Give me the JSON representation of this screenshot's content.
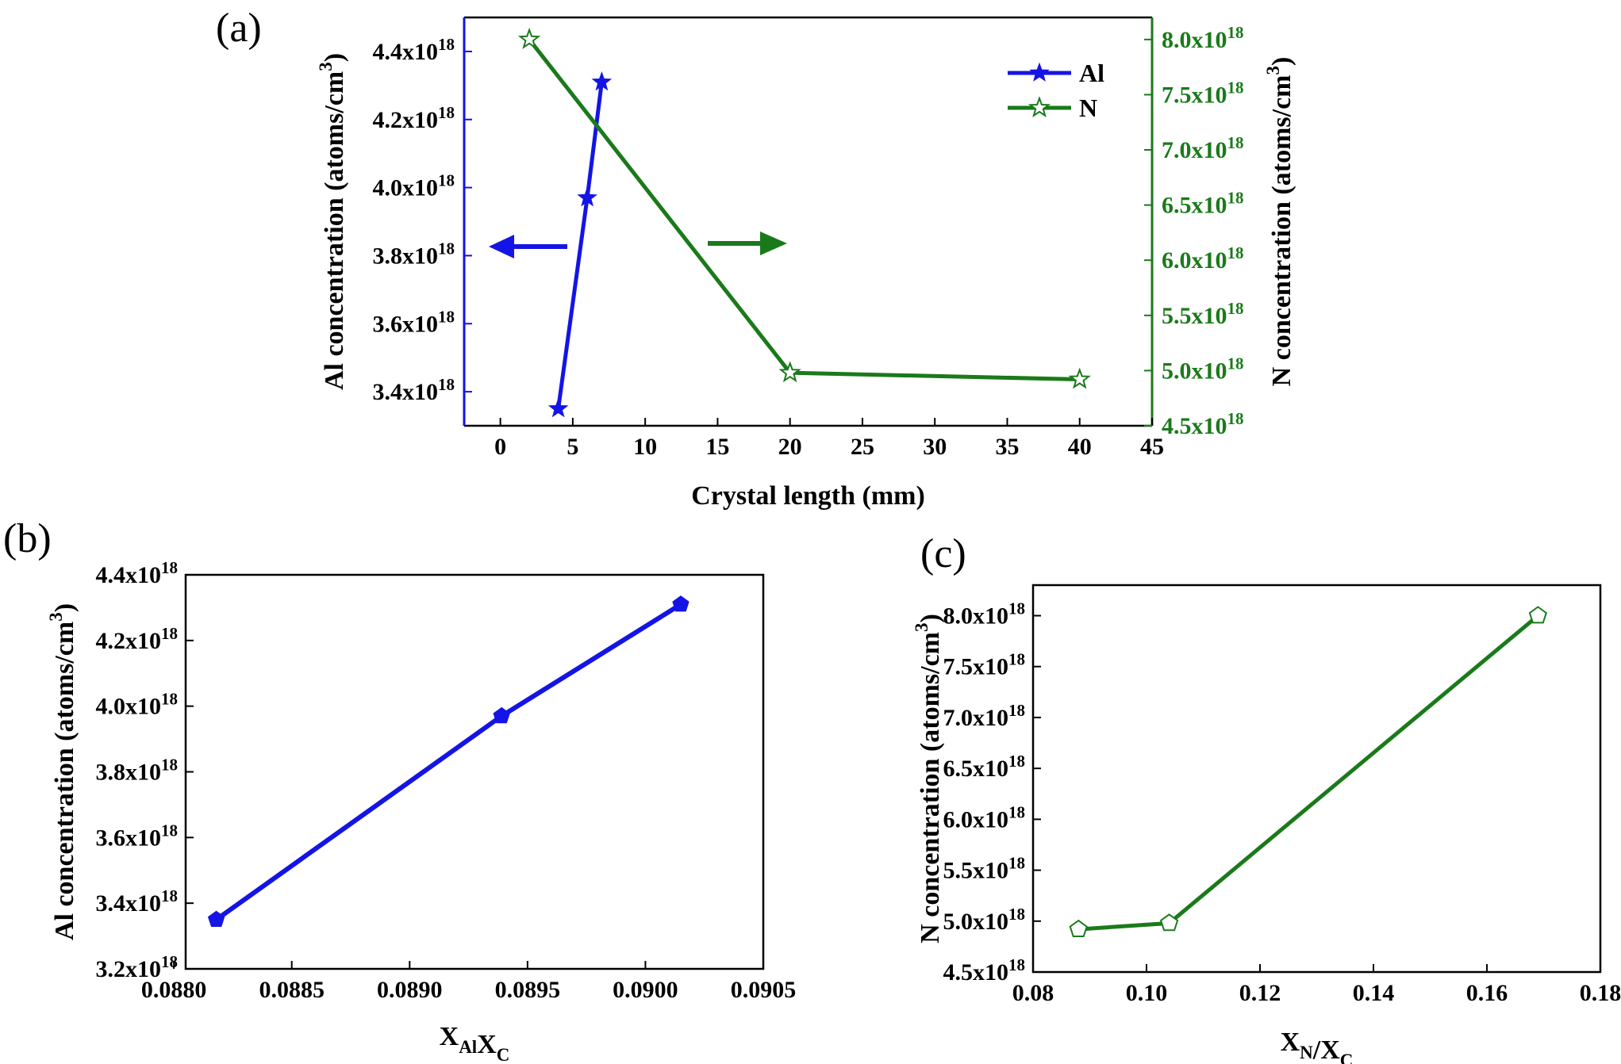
{
  "colors": {
    "al": "#1414e6",
    "n": "#1a7a1a",
    "axis": "#000000"
  },
  "chart_data": [
    {
      "panel": "(a)",
      "type": "line",
      "xlabel": "Crystal length (mm)",
      "xlim": [
        -2.5,
        45
      ],
      "xticks": [
        0,
        5,
        10,
        15,
        20,
        25,
        30,
        35,
        40,
        45
      ],
      "ylabel_left": "Al concentration (atoms/cm3)",
      "ylim_left": [
        3.3e+18,
        4.5e+18
      ],
      "yticks_left": [
        3.4e+18,
        3.6e+18,
        3.8e+18,
        4e+18,
        4.2e+18,
        4.4e+18
      ],
      "ylabel_right": "N concentration (atoms/cm3)",
      "ylim_right": [
        4.5e+18,
        8.2e+18
      ],
      "yticks_right": [
        4.5e+18,
        5e+18,
        5.5e+18,
        6e+18,
        6.5e+18,
        7e+18,
        7.5e+18,
        8e+18
      ],
      "legend_position": "top-right",
      "series": [
        {
          "name": "Al",
          "axis": "left",
          "marker": "star-filled",
          "x": [
            4,
            6,
            7
          ],
          "y": [
            3.35e+18,
            3.97e+18,
            4.31e+18
          ]
        },
        {
          "name": "N",
          "axis": "right",
          "marker": "star-open",
          "x": [
            2,
            20,
            40
          ],
          "y": [
            8e+18,
            4.98e+18,
            4.92e+18
          ]
        }
      ],
      "annotations": [
        "arrow-left (Al → left axis)",
        "arrow-right (N → right axis)"
      ]
    },
    {
      "panel": "(b)",
      "type": "line",
      "xlabel": "XAlXC",
      "xlim": [
        0.08805,
        0.0905
      ],
      "xticks": [
        0.088,
        0.0885,
        0.089,
        0.0895,
        0.09,
        0.0905
      ],
      "xtick_labels": [
        "0.0880",
        "0.0885",
        "0.0890",
        "0.0895",
        "0.0900",
        "0.0905"
      ],
      "ylabel": "Al concentration (atoms/cm3)",
      "ylim": [
        3.2e+18,
        4.4e+18
      ],
      "yticks": [
        3.2e+18,
        3.4e+18,
        3.6e+18,
        3.8e+18,
        4e+18,
        4.2e+18,
        4.4e+18
      ],
      "series": [
        {
          "marker": "pentagon-filled",
          "x": [
            0.08818,
            0.08939,
            0.09015
          ],
          "y": [
            3.35e+18,
            3.97e+18,
            4.31e+18
          ]
        }
      ]
    },
    {
      "panel": "(c)",
      "type": "line",
      "xlabel": "XN/XC",
      "xlim": [
        0.08,
        0.18
      ],
      "xticks": [
        0.08,
        0.1,
        0.12,
        0.14,
        0.16,
        0.18
      ],
      "xtick_labels": [
        "0.08",
        "0.10",
        "0.12",
        "0.14",
        "0.16",
        "0.18"
      ],
      "ylabel": "N concentration (atoms/cm3)",
      "ylim": [
        4.5e+18,
        8.3e+18
      ],
      "yticks": [
        4.5e+18,
        5e+18,
        5.5e+18,
        6e+18,
        6.5e+18,
        7e+18,
        7.5e+18,
        8e+18
      ],
      "series": [
        {
          "marker": "pentagon-open",
          "x": [
            0.088,
            0.104,
            0.169
          ],
          "y": [
            4.92e+18,
            4.98e+18,
            8e+18
          ]
        }
      ]
    }
  ]
}
